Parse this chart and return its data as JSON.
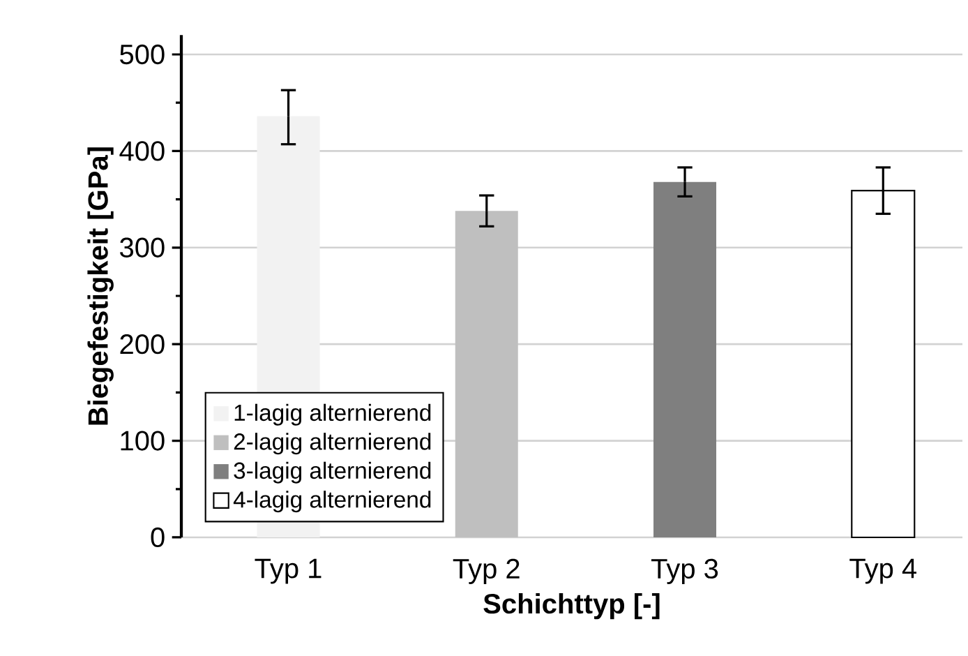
{
  "chart_data": {
    "type": "bar",
    "xlabel": "Schichttyp [-]",
    "ylabel": "Biegefestigkeit [GPa]",
    "categories": [
      "Typ 1",
      "Typ 2",
      "Typ 3",
      "Typ 4"
    ],
    "series": [
      {
        "name": "1-lagig alternierend",
        "color": "#f2f2f2",
        "values": [
          436,
          null,
          null,
          null
        ],
        "errors": [
          [
            407,
            463
          ],
          null,
          null,
          null
        ]
      },
      {
        "name": "2-lagig alternierend",
        "color": "#bfbfbf",
        "values": [
          null,
          338,
          null,
          null
        ],
        "errors": [
          null,
          [
            322,
            354
          ],
          null,
          null
        ]
      },
      {
        "name": "3-lagig alternierend",
        "color": "#7f7f7f",
        "values": [
          null,
          null,
          368,
          null
        ],
        "errors": [
          null,
          null,
          [
            353,
            383
          ],
          null
        ]
      },
      {
        "name": "4-lagig alternierend",
        "color": "#ffffff",
        "values": [
          null,
          null,
          null,
          359
        ],
        "errors": [
          null,
          null,
          null,
          [
            335,
            383
          ]
        ]
      }
    ],
    "ylim": [
      0,
      520
    ],
    "yticks": [
      0,
      100,
      200,
      300,
      400,
      500
    ],
    "grid": "y",
    "legend": "bottom left"
  }
}
